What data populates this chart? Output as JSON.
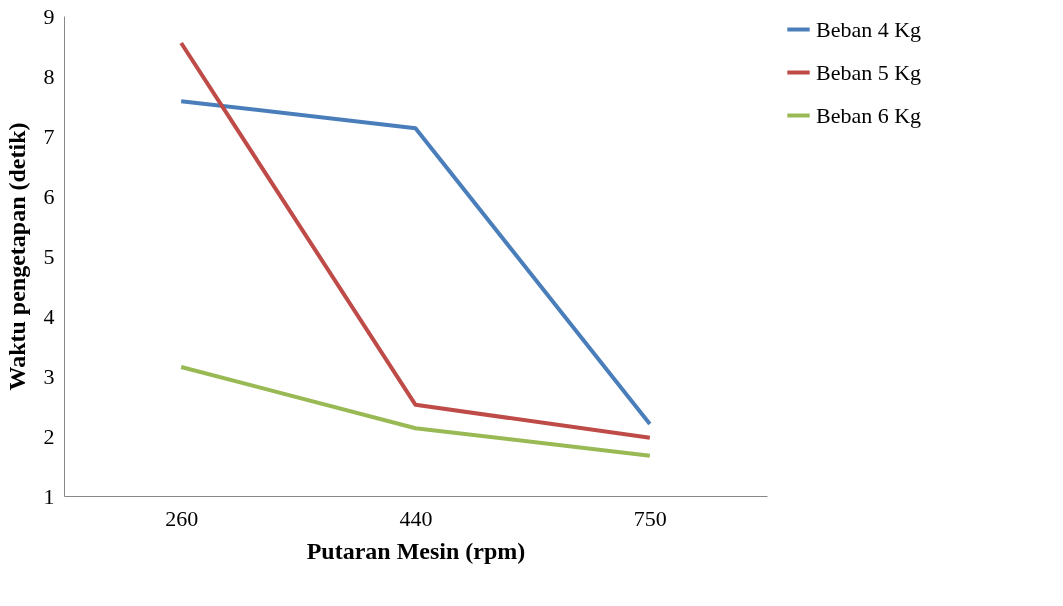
{
  "chart_data": {
    "type": "line",
    "xlabel": "Putaran Mesin (rpm)",
    "ylabel": "Waktu pengetapan  (detik)",
    "categories": [
      "260",
      "440",
      "750"
    ],
    "series": [
      {
        "name": "Beban 4 Kg",
        "color": "#4a7ebb",
        "values": [
          7.58,
          7.13,
          2.2
        ]
      },
      {
        "name": "Beban 5 Kg",
        "color": "#be4b48",
        "values": [
          8.55,
          2.52,
          1.97
        ]
      },
      {
        "name": "Beban 6 Kg",
        "color": "#98b954",
        "values": [
          3.15,
          2.13,
          1.67
        ]
      }
    ],
    "ylim": [
      1,
      9
    ],
    "yticks": [
      1,
      2,
      3,
      4,
      5,
      6,
      7,
      8,
      9
    ],
    "grid": false,
    "legend": "right",
    "marker": "none",
    "line_style": "solid"
  }
}
